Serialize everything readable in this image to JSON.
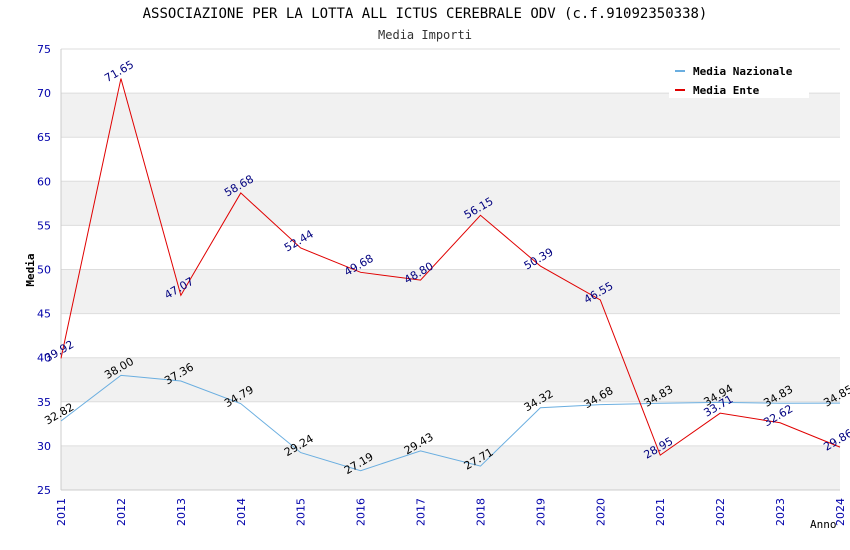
{
  "chart_data": {
    "type": "line",
    "title": "ASSOCIAZIONE PER LA LOTTA ALL ICTUS CEREBRALE ODV (c.f.91092350338)",
    "subtitle": "Media Importi",
    "xlabel": "Anno",
    "ylabel": "Media",
    "ylim": [
      25,
      75
    ],
    "yticks": [
      "25",
      "30",
      "35",
      "40",
      "45",
      "50",
      "55",
      "60",
      "65",
      "70",
      "75"
    ],
    "categories": [
      "2011",
      "2012",
      "2013",
      "2014",
      "2015",
      "2016",
      "2017",
      "2018",
      "2019",
      "2020",
      "2021",
      "2022",
      "2023",
      "2024"
    ],
    "legend_position": "top-right",
    "grid": true,
    "series": [
      {
        "name": "Media Nazionale",
        "color": "#6aaee0",
        "label_color": "#000000",
        "values": [
          32.82,
          38.0,
          37.36,
          34.79,
          29.24,
          27.19,
          29.43,
          27.71,
          34.32,
          34.68,
          34.83,
          34.94,
          34.83,
          34.85
        ],
        "labels": [
          "32.82",
          "38.00",
          "37.36",
          "34.79",
          "29.24",
          "27.19",
          "29.43",
          "27.71",
          "34.32",
          "34.68",
          "34.83",
          "34.94",
          "34.83",
          "34.85"
        ]
      },
      {
        "name": "Media Ente",
        "color": "#e00000",
        "label_color": "#00007f",
        "values": [
          39.92,
          71.65,
          47.07,
          58.68,
          52.44,
          49.68,
          48.8,
          56.15,
          50.39,
          46.55,
          28.95,
          33.71,
          32.62,
          29.86
        ],
        "labels": [
          "39.92",
          "71.65",
          "47.07",
          "58.68",
          "52.44",
          "49.68",
          "48.80",
          "56.15",
          "50.39",
          "46.55",
          "28.95",
          "33.71",
          "32.62",
          "29.86"
        ]
      }
    ]
  },
  "colors": {
    "band": "#f1f1f1",
    "grid": "#dddddd",
    "tick_text": "#0000aa"
  }
}
